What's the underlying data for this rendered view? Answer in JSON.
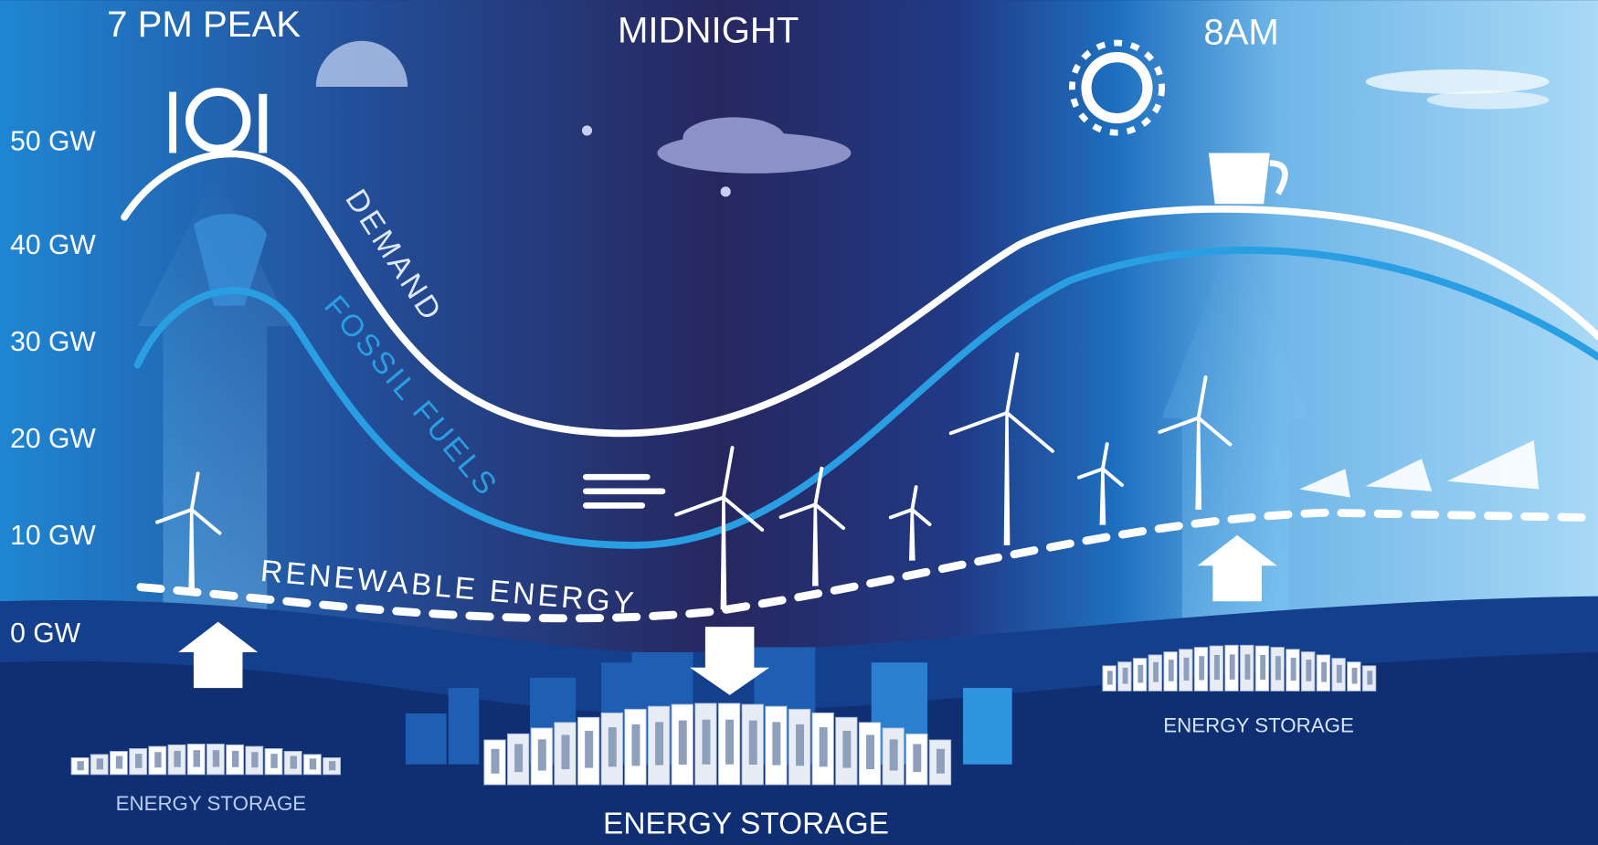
{
  "header": {
    "peak": "7 PM PEAK",
    "midnight": "MIDNIGHT",
    "morning": "8AM"
  },
  "axis_labels": [
    "50 GW",
    "40 GW",
    "30 GW",
    "20 GW",
    "10 GW",
    "0 GW"
  ],
  "curves": {
    "demand": "DEMAND",
    "fossil": "FOSSIL FUELS",
    "renewable": "RENEWABLE ENERGY"
  },
  "storage_labels": [
    "ENERGY STORAGE",
    "ENERGY STORAGE",
    "ENERGY STORAGE"
  ]
}
